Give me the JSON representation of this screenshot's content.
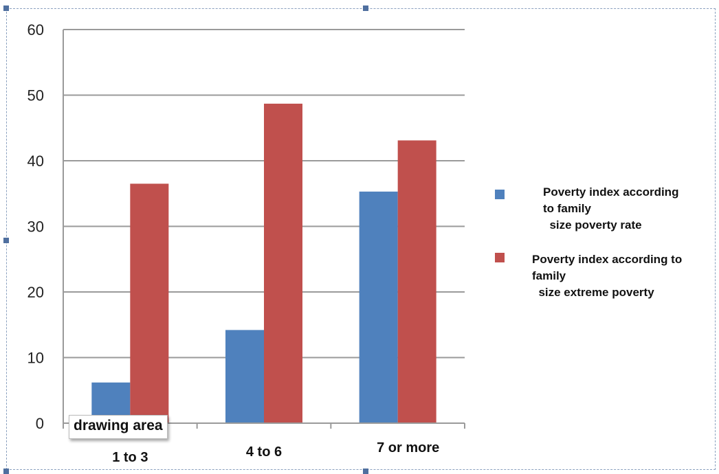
{
  "chart_data": {
    "type": "bar",
    "categories": [
      "1 to 3",
      "4 to 6",
      "7 or more"
    ],
    "series": [
      {
        "name": "Poverty index according\nto family\n  size poverty rate",
        "color": "#4f81bd",
        "values": [
          6.2,
          14.2,
          35.3
        ]
      },
      {
        "name": "Poverty index according to\nfamily\n  size extreme poverty",
        "color": "#c0504d",
        "values": [
          36.5,
          48.7,
          43.1
        ]
      }
    ],
    "ylim": [
      0,
      60
    ],
    "yticks": [
      "0",
      "10",
      "20",
      "30",
      "40",
      "50",
      "60"
    ],
    "grid": true,
    "legend_position": "right"
  },
  "tooltip": {
    "label": "drawing area"
  }
}
